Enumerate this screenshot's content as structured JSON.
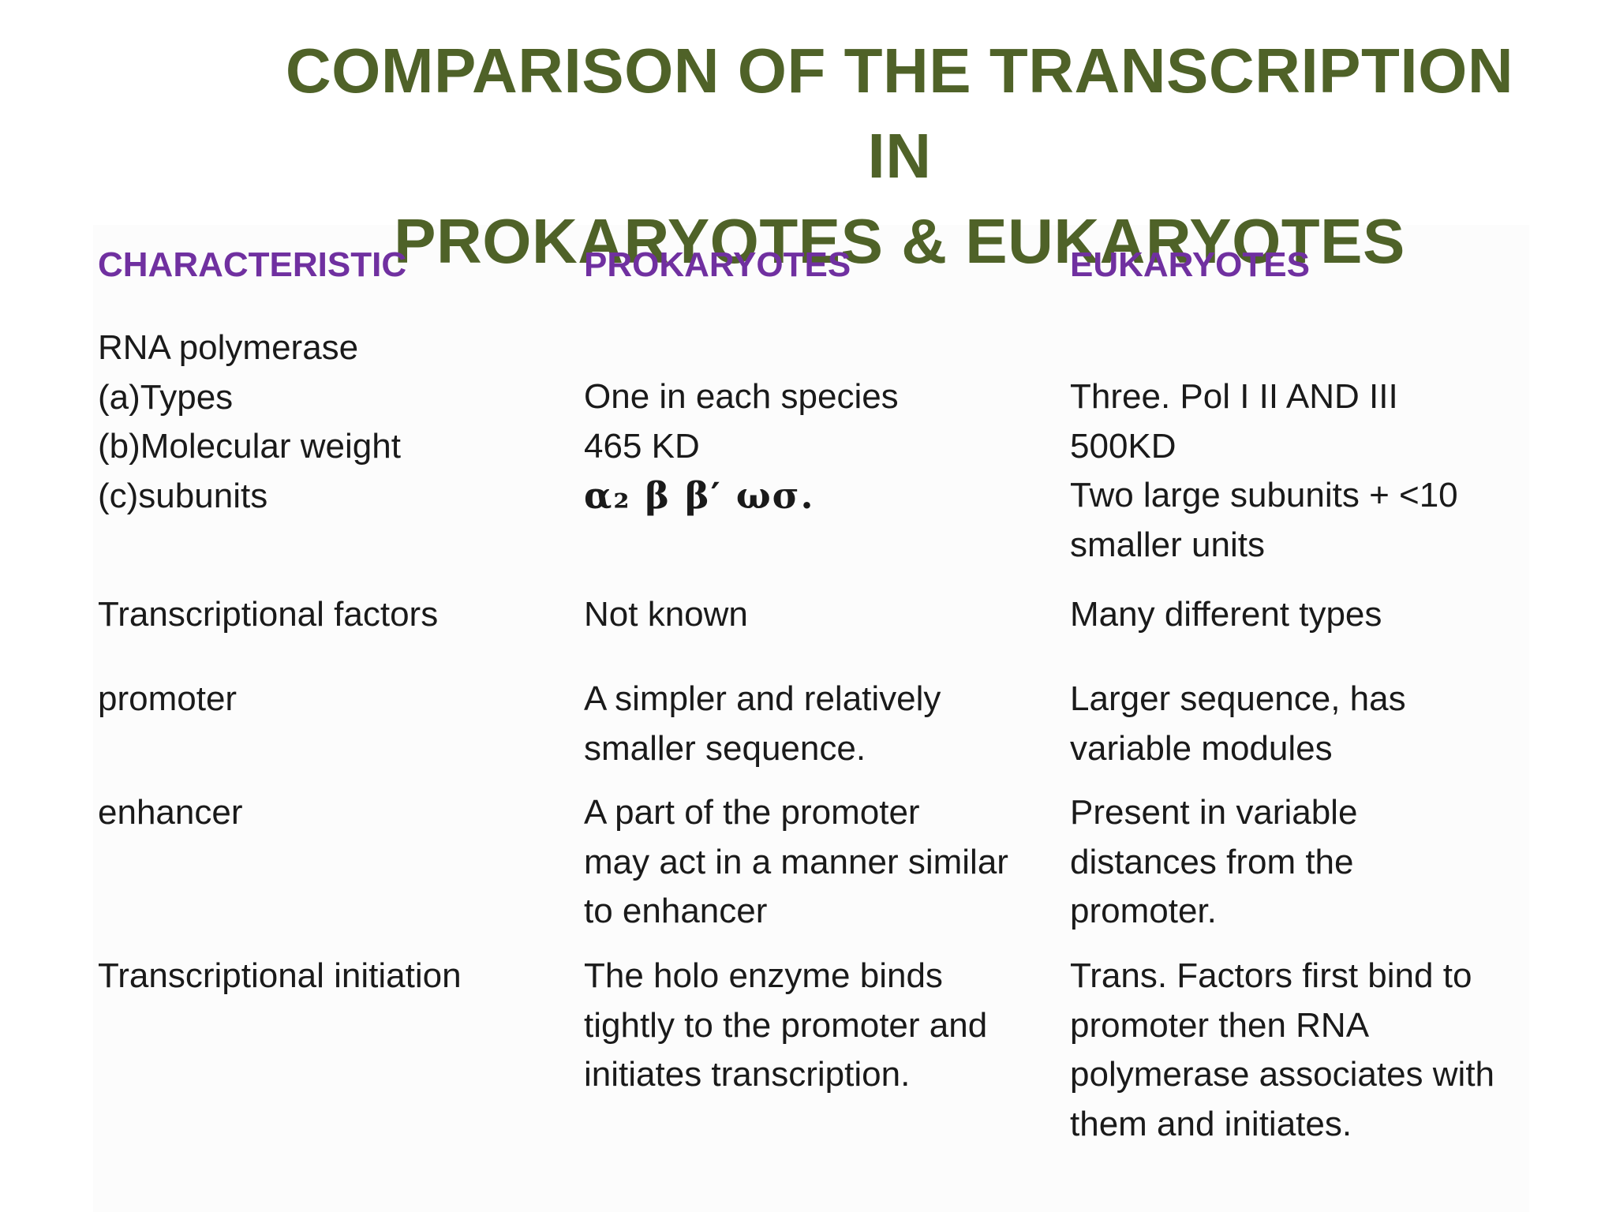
{
  "title": {
    "line1": "COMPARISON OF THE TRANSCRIPTION IN",
    "line2": "PROKARYOTES  & EUKARYOTES"
  },
  "headers": {
    "characteristic": "CHARACTERISTIC",
    "prokaryotes": "PROKARYOTES",
    "eukaryotes": "EUKARYOTES"
  },
  "rows": {
    "rna_polymerase": {
      "characteristic": [
        "RNA polymerase",
        "(a)Types",
        "(b)Molecular weight",
        "(c)subunits"
      ],
      "prokaryotes": [
        "One in each species",
        "465 KD",
        "α₂ β β′ ωσ."
      ],
      "eukaryotes": [
        "Three. Pol I II AND III",
        "500KD",
        "Two large subunits + <10",
        "smaller units"
      ]
    },
    "transcriptional_factors": {
      "characteristic": [
        "Transcriptional factors"
      ],
      "prokaryotes": [
        "Not known"
      ],
      "eukaryotes": [
        "Many different types"
      ]
    },
    "promoter": {
      "characteristic": [
        "promoter"
      ],
      "prokaryotes": [
        "A simpler and relatively",
        "smaller sequence."
      ],
      "eukaryotes": [
        "Larger sequence, has",
        "variable modules"
      ]
    },
    "enhancer": {
      "characteristic": [
        "enhancer"
      ],
      "prokaryotes": [
        "A part of the promoter",
        "may act in a manner similar",
        "to enhancer"
      ],
      "eukaryotes": [
        "Present in variable",
        "distances from the",
        "promoter."
      ]
    },
    "transcriptional_initiation": {
      "characteristic": [
        "Transcriptional initiation"
      ],
      "prokaryotes": [
        "The holo enzyme binds",
        "tightly to the promoter and",
        "initiates transcription."
      ],
      "eukaryotes": [
        "Trans. Factors first bind to",
        "promoter then RNA",
        "polymerase associates with",
        "them and initiates."
      ]
    }
  }
}
